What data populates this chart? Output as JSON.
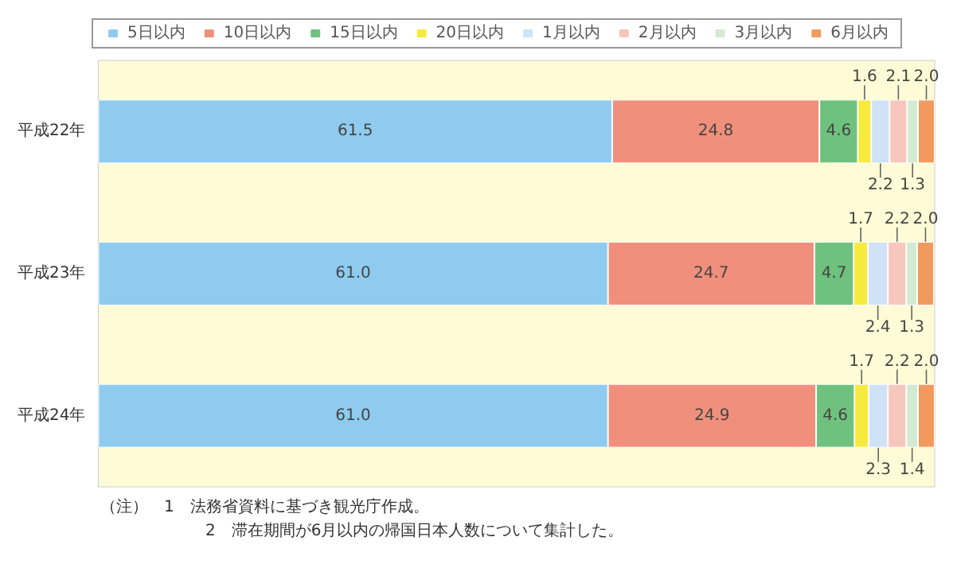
{
  "chart_data": {
    "type": "bar",
    "orientation": "horizontal",
    "stacked": true,
    "legend": "top",
    "categories": [
      "平成22年",
      "平成23年",
      "平成24年"
    ],
    "series": [
      {
        "name": "5日以内",
        "color": "#8ecbef",
        "values": [
          61.5,
          61.0,
          61.0
        ],
        "value_labels": [
          "61.5",
          "61.0",
          "61.0"
        ]
      },
      {
        "name": "10日以内",
        "color": "#f0907c",
        "values": [
          24.8,
          24.7,
          24.9
        ],
        "value_labels": [
          "24.8",
          "24.7",
          "24.9"
        ]
      },
      {
        "name": "15日以内",
        "color": "#6fc27e",
        "values": [
          4.6,
          4.7,
          4.6
        ],
        "value_labels": [
          "4.6",
          "4.7",
          "4.6"
        ]
      },
      {
        "name": "20日以内",
        "color": "#f6ea3c",
        "values": [
          1.6,
          1.7,
          1.7
        ],
        "value_labels": [
          "1.6",
          "1.7",
          "1.7"
        ]
      },
      {
        "name": "1月以内",
        "color": "#cfe2f6",
        "values": [
          2.2,
          2.4,
          2.3
        ],
        "value_labels": [
          "2.2",
          "2.4",
          "2.3"
        ]
      },
      {
        "name": "2月以内",
        "color": "#f7c6bd",
        "values": [
          2.1,
          2.2,
          2.2
        ],
        "value_labels": [
          "2.1",
          "2.2",
          "2.2"
        ]
      },
      {
        "name": "3月以内",
        "color": "#d3ead2",
        "values": [
          1.3,
          1.3,
          1.4
        ],
        "value_labels": [
          "1.3",
          "1.3",
          "1.4"
        ]
      },
      {
        "name": "6月以内",
        "color": "#f29a5e",
        "values": [
          2.0,
          2.0,
          2.0
        ],
        "value_labels": [
          "2.0",
          "2.0",
          "2.0"
        ]
      }
    ],
    "annotations": [
      "（注）　1　法務省資料に基づき観光庁作成。",
      "2　滞在期間が6月以内の帰国日本人数について集計した。"
    ]
  }
}
